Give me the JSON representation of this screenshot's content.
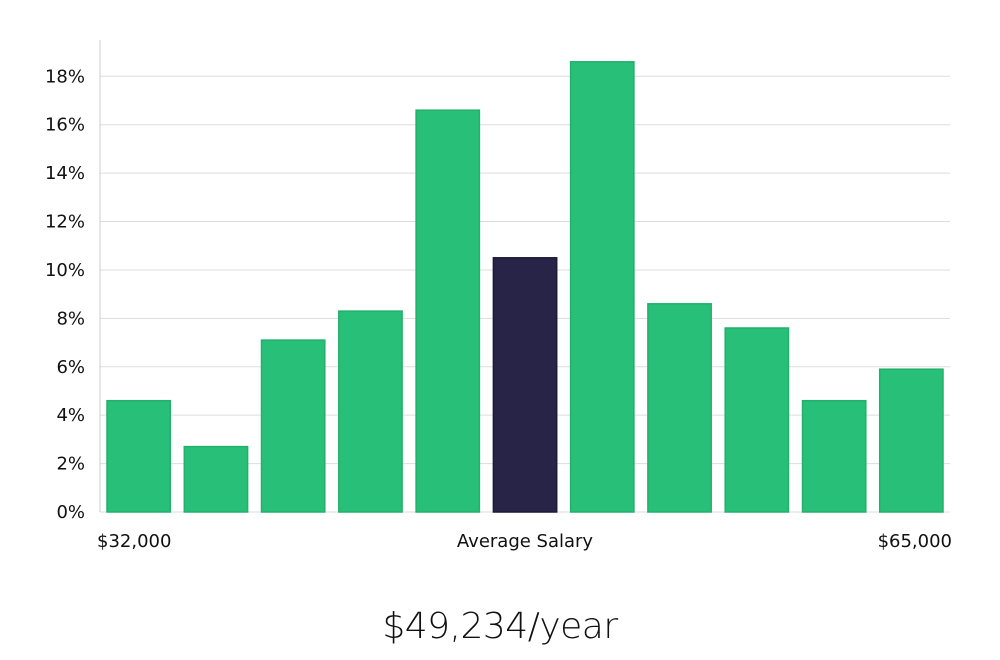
{
  "chart_data": {
    "type": "bar",
    "y_unit": "%",
    "values": [
      4.6,
      2.7,
      7.1,
      8.3,
      16.6,
      10.5,
      18.6,
      8.6,
      7.6,
      4.6,
      5.9
    ],
    "highlight_index": 5,
    "ylim": [
      0,
      19.5
    ],
    "yticks": [
      0,
      2,
      4,
      6,
      8,
      10,
      12,
      14,
      16,
      18
    ],
    "ytick_labels": [
      "0%",
      "2%",
      "4%",
      "6%",
      "8%",
      "10%",
      "12%",
      "14%",
      "16%",
      "18%"
    ],
    "x_labels": {
      "left": "$32,000",
      "center": "Average Salary",
      "right": "$65,000"
    },
    "grid": true,
    "colors": {
      "bar": "#28bf79",
      "bar_highlight": "#282448",
      "grid": "#dddddd",
      "axis": "#cccccc"
    }
  },
  "salary_display": "$49,234/year"
}
